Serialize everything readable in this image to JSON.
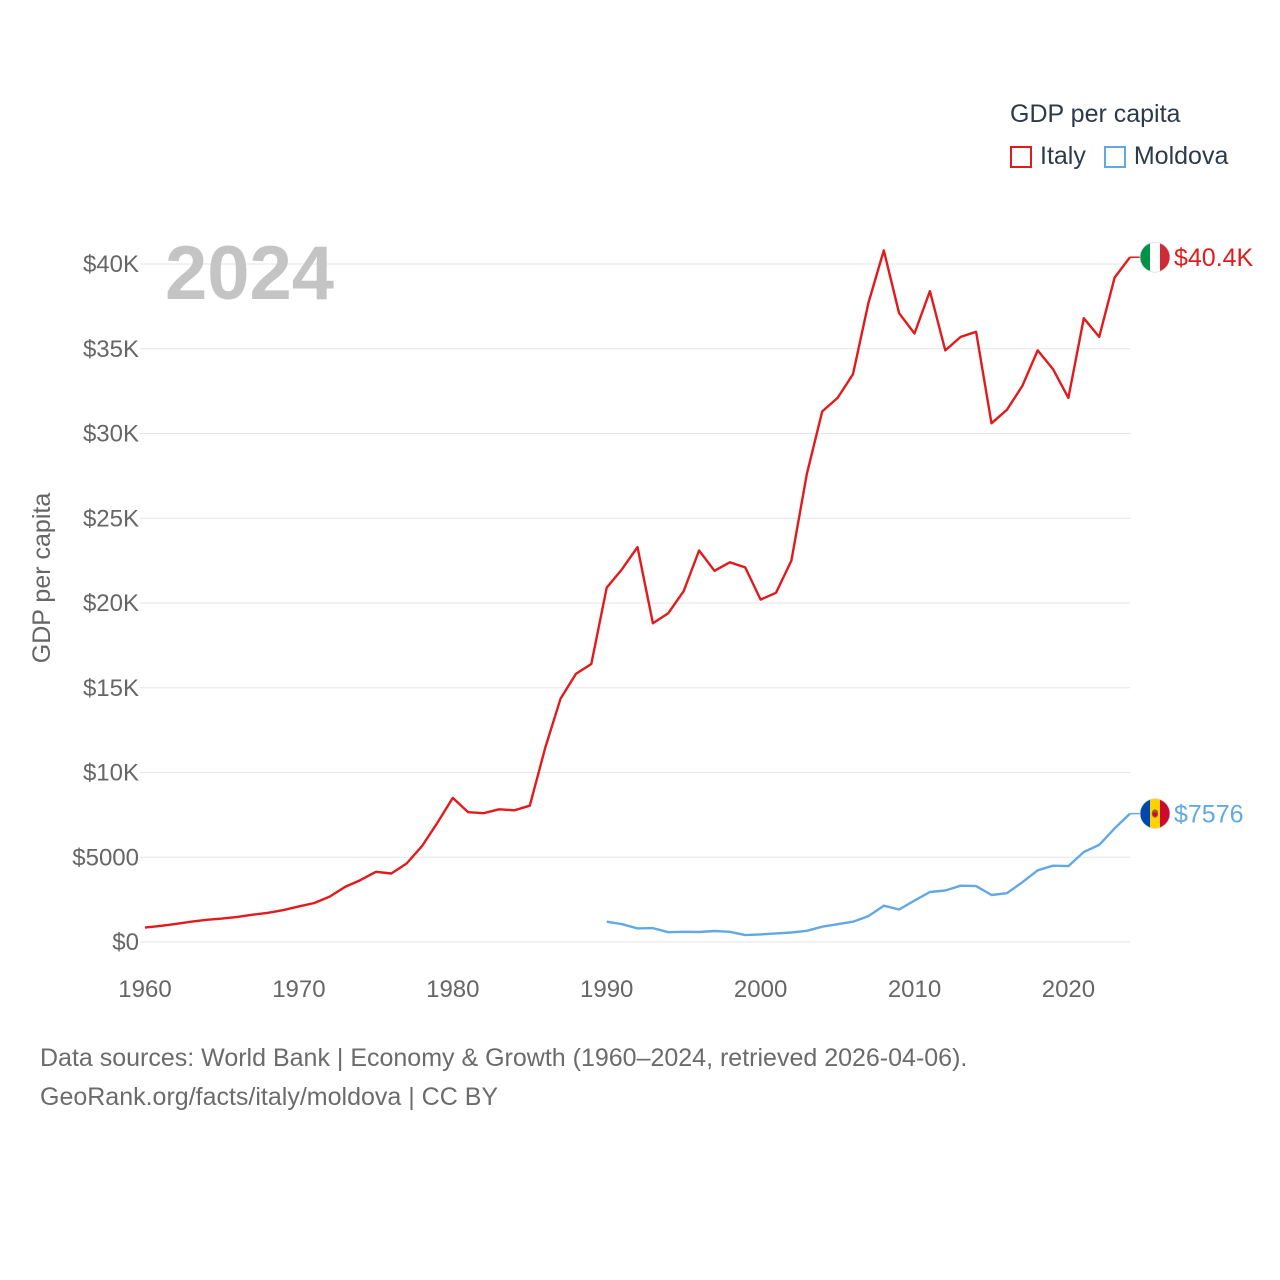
{
  "legend": {
    "title": "GDP per capita",
    "items": [
      {
        "label": "Italy",
        "color": "#e31a1c"
      },
      {
        "label": "Moldova",
        "color": "#62a8e5"
      }
    ]
  },
  "footer": {
    "line1": "Data sources: World Bank | Economy & Growth (1960–2024, retrieved 2026-04-06).",
    "line2": "GeoRank.org/facts/italy/moldova | CC BY"
  },
  "chart_data": {
    "type": "line",
    "title": "GDP per capita",
    "year_label": "2024",
    "xlabel": "",
    "ylabel": "GDP per capita",
    "xlim": [
      1960,
      2024
    ],
    "ylim": [
      0,
      40000
    ],
    "x_ticks": [
      "1960",
      "1970",
      "1980",
      "1990",
      "2000",
      "2010",
      "2020"
    ],
    "y_ticks": [
      {
        "value": 0,
        "label": "$0"
      },
      {
        "value": 5000,
        "label": "$5000"
      },
      {
        "value": 10000,
        "label": "$10K"
      },
      {
        "value": 15000,
        "label": "$15K"
      },
      {
        "value": 20000,
        "label": "$20K"
      },
      {
        "value": 25000,
        "label": "$25K"
      },
      {
        "value": 30000,
        "label": "$30K"
      },
      {
        "value": 35000,
        "label": "$35K"
      },
      {
        "value": 40000,
        "label": "$40K"
      }
    ],
    "series": [
      {
        "name": "Italy",
        "color": "#e31a1c",
        "end_label": "$40.4K",
        "flag": "italy-flag",
        "x": [
          1960,
          1961,
          1962,
          1963,
          1964,
          1965,
          1966,
          1967,
          1968,
          1969,
          1970,
          1971,
          1972,
          1973,
          1974,
          1975,
          1976,
          1977,
          1978,
          1979,
          1980,
          1981,
          1982,
          1983,
          1984,
          1985,
          1986,
          1987,
          1988,
          1989,
          1990,
          1991,
          1992,
          1993,
          1994,
          1995,
          1996,
          1997,
          1998,
          1999,
          2000,
          2001,
          2002,
          2003,
          2004,
          2005,
          2006,
          2007,
          2008,
          2009,
          2010,
          2011,
          2012,
          2013,
          2014,
          2015,
          2016,
          2017,
          2018,
          2019,
          2020,
          2021,
          2022,
          2023,
          2024
        ],
        "values": [
          850,
          950,
          1070,
          1200,
          1310,
          1380,
          1480,
          1610,
          1720,
          1880,
          2100,
          2300,
          2680,
          3250,
          3650,
          4140,
          4040,
          4630,
          5660,
          7030,
          8500,
          7660,
          7600,
          7830,
          7770,
          8040,
          11450,
          14350,
          15820,
          16400,
          20900,
          22000,
          23300,
          18800,
          19400,
          20700,
          23100,
          21900,
          22400,
          22100,
          20200,
          20600,
          22500,
          27600,
          31300,
          32100,
          33500,
          37700,
          40800,
          37100,
          35900,
          38400,
          34900,
          35700,
          36000,
          30600,
          31400,
          32800,
          34900,
          33800,
          32100,
          36800,
          35700,
          39200,
          40400
        ]
      },
      {
        "name": "Moldova",
        "color": "#62a8e5",
        "end_label": "$7576",
        "flag": "moldova-flag",
        "x": [
          1990,
          1991,
          1992,
          1993,
          1994,
          1995,
          1996,
          1997,
          1998,
          1999,
          2000,
          2001,
          2002,
          2003,
          2004,
          2005,
          2006,
          2007,
          2008,
          2009,
          2010,
          2011,
          2012,
          2013,
          2014,
          2015,
          2016,
          2017,
          2018,
          2019,
          2020,
          2021,
          2022,
          2023,
          2024
        ],
        "values": [
          1200,
          1050,
          800,
          820,
          580,
          600,
          590,
          650,
          600,
          410,
          450,
          510,
          560,
          660,
          900,
          1050,
          1200,
          1530,
          2140,
          1920,
          2440,
          2950,
          3040,
          3320,
          3300,
          2770,
          2880,
          3520,
          4230,
          4500,
          4480,
          5310,
          5730,
          6700,
          7576
        ]
      }
    ]
  }
}
